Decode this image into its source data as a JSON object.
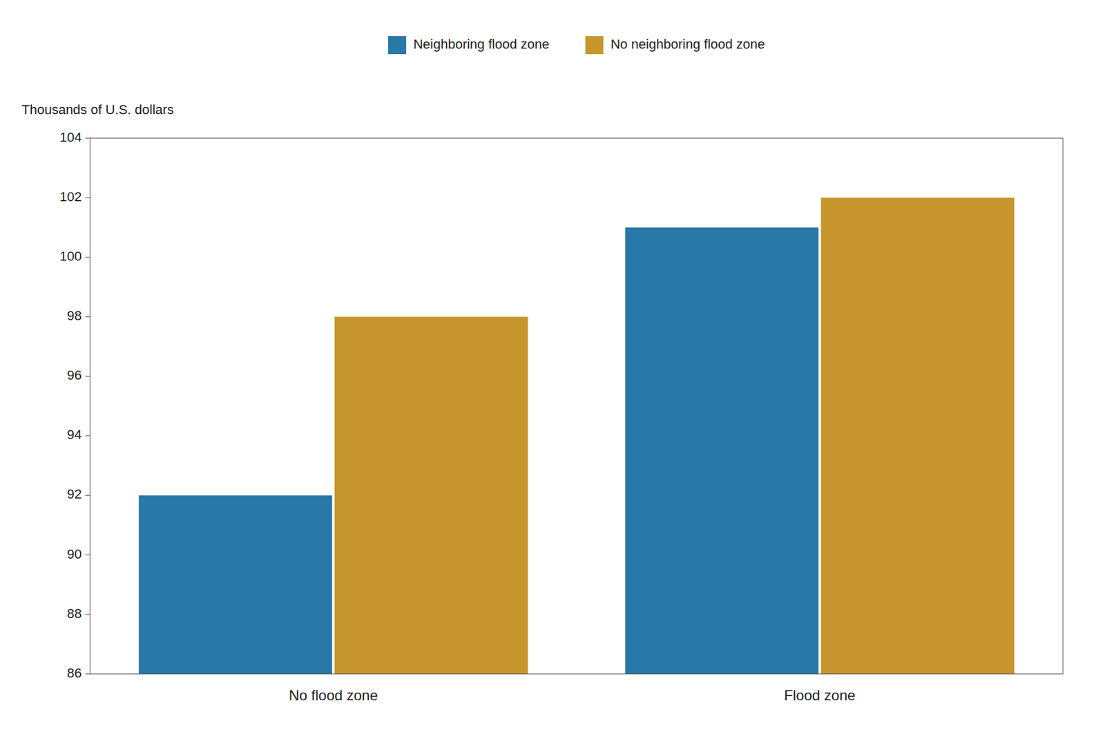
{
  "chart_data": {
    "type": "bar",
    "categories": [
      "No flood zone",
      "Flood zone"
    ],
    "series": [
      {
        "name": "Neighboring flood zone",
        "color": "#2878a8",
        "values": [
          92,
          101
        ]
      },
      {
        "name": "No neighboring flood zone",
        "color": "#c8962e",
        "values": [
          98,
          102
        ]
      }
    ],
    "ylabel": "Thousands of U.S. dollars",
    "ylim": [
      86,
      104
    ],
    "yticks": [
      86,
      88,
      90,
      92,
      94,
      96,
      98,
      100,
      102,
      104
    ],
    "grid": false,
    "legend": "top"
  }
}
